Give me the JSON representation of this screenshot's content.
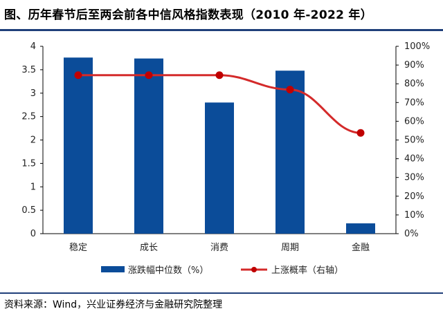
{
  "header": {
    "title": "图、历年春节后至两会前各中信风格指数表现（2010 年-2022 年）"
  },
  "footer": {
    "source": "资料来源：Wind，兴业证券经济与金融研究院整理"
  },
  "chart_data": {
    "type": "bar",
    "categories": [
      "稳定",
      "成长",
      "消费",
      "周期",
      "金融"
    ],
    "series": [
      {
        "name": "涨跌幅中位数（%）",
        "type": "bar",
        "axis": "left",
        "values": [
          3.76,
          3.74,
          2.8,
          3.48,
          0.22
        ]
      },
      {
        "name": "上涨概率（右轴）",
        "type": "line",
        "axis": "right",
        "values": [
          0.846,
          0.846,
          0.846,
          0.769,
          0.538
        ]
      }
    ],
    "y_left": {
      "ylim": [
        0,
        4
      ],
      "ticks": [
        "0",
        "0.5",
        "1",
        "1.5",
        "2",
        "2.5",
        "3",
        "3.5",
        "4"
      ]
    },
    "y_right": {
      "ylim": [
        0,
        1
      ],
      "ticks": [
        "0%",
        "10%",
        "20%",
        "30%",
        "40%",
        "50%",
        "60%",
        "70%",
        "80%",
        "90%",
        "100%"
      ]
    },
    "colors": {
      "bar": "#0b4c99",
      "line": "#d42a2a"
    },
    "grid": false,
    "legend_position": "bottom"
  }
}
